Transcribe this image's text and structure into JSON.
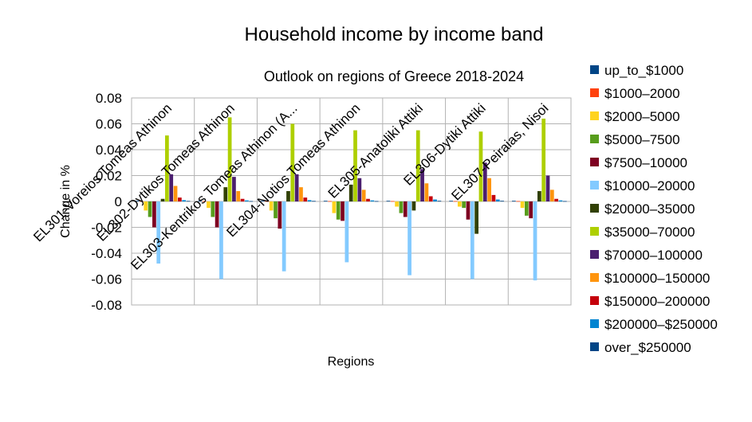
{
  "chart_data": {
    "type": "bar",
    "title": "Household income by income band",
    "subtitle": "Outlook on regions of Greece 2018-2024",
    "xlabel": "Regions",
    "ylabel": "Change in %",
    "ylim": [
      -0.08,
      0.08
    ],
    "yticks": [
      "0.08",
      "0.06",
      "0.04",
      "0.02",
      "0",
      "-0.02",
      "-0.04",
      "-0.06",
      "-0.08"
    ],
    "ytick_values": [
      0.08,
      0.06,
      0.04,
      0.02,
      0,
      -0.02,
      -0.04,
      -0.06,
      -0.08
    ],
    "grid": true,
    "legend_position": "right",
    "categories": [
      "EL301-Voreios Tomeas Athinon",
      "EL302-Dytikos Tomeas Athinon",
      "EL303-Kentrikos Tomeas Athinon (A...",
      "EL304-Notios Tomeas Athinon",
      "EL305-Anatoliki Attiki",
      "EL306-Dytiki Attiki",
      "EL307-Peiraias, Nisoi"
    ],
    "series": [
      {
        "name": "up_to_$1000",
        "color": "#004586",
        "values": [
          0.0005,
          0.0005,
          0.0005,
          0.0005,
          0.0005,
          0.0005,
          0.0005
        ]
      },
      {
        "name": "$1000–2000",
        "color": "#ff420e",
        "values": [
          0.0003,
          0.0003,
          0.0003,
          0.0003,
          0.0003,
          0.0003,
          0.0003
        ]
      },
      {
        "name": "$2000–5000",
        "color": "#ffd320",
        "values": [
          -0.007,
          -0.005,
          -0.007,
          -0.009,
          -0.004,
          -0.004,
          -0.005
        ]
      },
      {
        "name": "$5000–7500",
        "color": "#579d1c",
        "values": [
          -0.012,
          -0.012,
          -0.013,
          -0.014,
          -0.009,
          -0.005,
          -0.011
        ]
      },
      {
        "name": "$7500–10000",
        "color": "#7e0021",
        "values": [
          -0.02,
          -0.02,
          -0.021,
          -0.015,
          -0.012,
          -0.014,
          -0.013
        ]
      },
      {
        "name": "$10000–20000",
        "color": "#83caff",
        "values": [
          -0.048,
          -0.06,
          -0.054,
          -0.047,
          -0.057,
          -0.06,
          -0.061
        ]
      },
      {
        "name": "$20000–35000",
        "color": "#314004",
        "values": [
          0.002,
          0.011,
          0.008,
          0.013,
          -0.007,
          -0.025,
          0.008
        ]
      },
      {
        "name": "$35000–70000",
        "color": "#aecf00",
        "values": [
          0.051,
          0.065,
          0.06,
          0.055,
          0.055,
          0.054,
          0.064
        ]
      },
      {
        "name": "$70000–100000",
        "color": "#4b1f6f",
        "values": [
          0.021,
          0.019,
          0.021,
          0.018,
          0.025,
          0.03,
          0.02
        ]
      },
      {
        "name": "$100000–150000",
        "color": "#ff950e",
        "values": [
          0.012,
          0.008,
          0.011,
          0.009,
          0.014,
          0.018,
          0.009
        ]
      },
      {
        "name": "$150000–200000",
        "color": "#c5000b",
        "values": [
          0.003,
          0.002,
          0.003,
          0.002,
          0.004,
          0.005,
          0.002
        ]
      },
      {
        "name": "$200000–$250000",
        "color": "#0084d1",
        "values": [
          0.001,
          0.0008,
          0.001,
          0.0008,
          0.0015,
          0.0015,
          0.0008
        ]
      },
      {
        "name": "over_$250000",
        "color": "#004586",
        "values": [
          0.0004,
          0.0003,
          0.0004,
          0.0003,
          0.0005,
          0.0005,
          0.0003
        ]
      }
    ]
  }
}
